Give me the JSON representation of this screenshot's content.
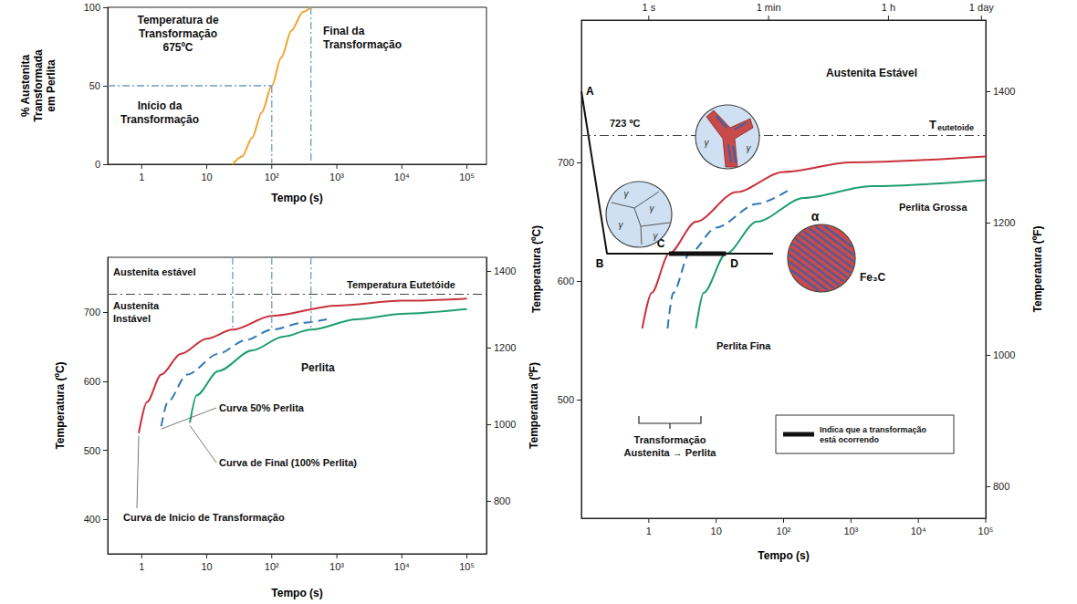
{
  "chart_data": [
    {
      "type": "line",
      "x_label": "Tempo (s)",
      "y_label": "% Austenita Transformada em Perlita",
      "log": "x",
      "xlim": [
        0.3,
        200000
      ],
      "xticks": [
        1,
        10,
        {
          "value": 100,
          "label": "10²"
        },
        {
          "value": 1000,
          "label": "10³"
        },
        {
          "value": 10000,
          "label": "10⁴"
        },
        {
          "value": 100000,
          "label": "10⁵"
        }
      ],
      "ylim": [
        0,
        100
      ],
      "yticks": [
        0,
        50,
        100
      ],
      "x": [
        25,
        35,
        50,
        70,
        100,
        140,
        200,
        300,
        400
      ],
      "values": [
        0,
        5,
        17,
        33,
        50,
        68,
        85,
        97,
        100
      ],
      "color": "#f0a32e",
      "annotations": [
        "Temperatura de Transformação 675ºC",
        "Início da Transformação",
        "Final da Transformação"
      ]
    },
    {
      "type": "line",
      "x_label": "Tempo (s)",
      "y_label": "Temperatura (ºC)",
      "y2_label": "Temperatura (ºF)",
      "log": "x",
      "xlim": [
        0.3,
        200000
      ],
      "xticks": [
        1,
        10,
        {
          "value": 100,
          "label": "10²"
        },
        {
          "value": 1000,
          "label": "10³"
        },
        {
          "value": 10000,
          "label": "10⁴"
        },
        {
          "value": 100000,
          "label": "10⁵"
        }
      ],
      "ylim": [
        350,
        780
      ],
      "yticks": [
        400,
        500,
        600,
        700
      ],
      "y2lim": [
        662,
        1436
      ],
      "y2ticks": [
        800,
        1000,
        1200,
        1400
      ],
      "eutectoid": 727,
      "transformation_temperature": 675,
      "series": [
        {
          "name": "Curva de Inicio de Transformação",
          "color": "#c8323c",
          "line_style": "solid",
          "x": [
            0.9,
            1.2,
            2,
            4,
            10,
            25,
            100,
            1000,
            10000,
            100000
          ],
          "values": [
            525,
            570,
            610,
            640,
            662,
            675,
            695,
            710,
            717,
            720
          ]
        },
        {
          "name": "Curva 50% Perlita",
          "color": "#2f78b5",
          "line_style": "dashed",
          "x": [
            2,
            2.5,
            5,
            15,
            40,
            100,
            300,
            700
          ],
          "values": [
            535,
            570,
            610,
            640,
            660,
            675,
            685,
            690
          ]
        },
        {
          "name": "Curva de Final (100% Perlita)",
          "color": "#1e9e6e",
          "line_style": "solid",
          "x": [
            5.5,
            7,
            15,
            50,
            150,
            400,
            2000,
            10000,
            100000
          ],
          "values": [
            540,
            580,
            615,
            645,
            665,
            675,
            690,
            698,
            705
          ]
        }
      ],
      "annotations": [
        "Austenita estável",
        "Temperatura Eutetóide",
        "Austenita Instável",
        "Perlita"
      ]
    },
    {
      "type": "line",
      "x_label": "Tempo (s)",
      "y_label": "Temperatura (ºC)",
      "y2_label": "Temperatura (ºF)",
      "log": "x",
      "xlim": [
        0.1,
        100000
      ],
      "xticks": [
        1,
        10,
        {
          "value": 100,
          "label": "10²"
        },
        {
          "value": 1000,
          "label": "10³"
        },
        {
          "value": 10000,
          "label": "10⁴"
        },
        {
          "value": 100000,
          "label": "10⁵"
        }
      ],
      "x2lim": [
        0.1,
        100000
      ],
      "x2ticks": [
        {
          "value": 1,
          "label": "1 s"
        },
        {
          "value": 60,
          "label": "1 min"
        },
        {
          "value": 3600,
          "label": "1 h"
        },
        {
          "value": 86400,
          "label": "1 day"
        }
      ],
      "ylim": [
        400,
        820
      ],
      "yticks": [
        500,
        600,
        700
      ],
      "y2lim": [
        752,
        1508
      ],
      "y2ticks": [
        800,
        1000,
        1200,
        1400
      ],
      "eutectoid": 723,
      "series": [
        {
          "color": "#c8323c",
          "line_style": "solid",
          "x": [
            0.8,
            1.1,
            2,
            5,
            20,
            100,
            1000,
            100000
          ],
          "values": [
            560,
            590,
            623,
            650,
            675,
            692,
            700,
            705
          ]
        },
        {
          "color": "#2f78b5",
          "line_style": "dashed",
          "x": [
            1.9,
            2.3,
            4,
            10,
            40,
            130
          ],
          "values": [
            560,
            590,
            623,
            645,
            665,
            678
          ]
        },
        {
          "color": "#1e9e6e",
          "line_style": "solid",
          "x": [
            5,
            6.5,
            14,
            40,
            200,
            2000,
            100000
          ],
          "values": [
            560,
            590,
            623,
            650,
            670,
            680,
            685
          ]
        },
        {
          "color": "#111111",
          "line_style": "solid",
          "x": [
            0.1,
            0.24,
            2,
            14,
            70
          ],
          "values": [
            760,
            623,
            623,
            623,
            623
          ],
          "point_labels": [
            "A",
            "B",
            "C",
            "D",
            null
          ]
        },
        {
          "color": "#111111",
          "line_style": "thick",
          "x": [
            2,
            14
          ],
          "values": [
            623,
            623
          ]
        }
      ],
      "grain_label": "γ",
      "annotations": [
        "723 ºC",
        "Austenita Estável",
        "T eutetoide",
        "Perlita Grossa",
        "Perlita Fina",
        "α",
        "Fe₃C",
        "Transformação Austenita → Perlita",
        "Indica que a transformação está ocorrendo"
      ]
    }
  ]
}
